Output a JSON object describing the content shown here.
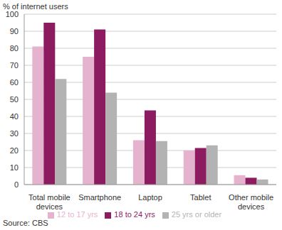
{
  "chart_data": {
    "type": "bar",
    "y_label": "% of internet users",
    "annotations": [
      "Source: CBS"
    ],
    "categories": [
      "Total mobile devices",
      "Smartphone",
      "Laptop",
      "Tablet",
      "Other mobile devices"
    ],
    "series": [
      {
        "name": "12 to 17 yrs",
        "color": "#e6b3cf",
        "values": [
          81,
          75,
          26,
          20,
          5.5
        ]
      },
      {
        "name": "18 to 24 yrs",
        "color": "#8c1c5f",
        "values": [
          95,
          91,
          43.5,
          21.5,
          4
        ]
      },
      {
        "name": "25 yrs or older",
        "color": "#b3b3b3",
        "values": [
          62,
          54,
          25.5,
          23,
          3
        ]
      }
    ],
    "ylim": [
      0,
      100
    ],
    "yticks": [
      0,
      10,
      20,
      30,
      40,
      50,
      60,
      70,
      80,
      90,
      100
    ],
    "grid": true,
    "legend": "bottom"
  }
}
